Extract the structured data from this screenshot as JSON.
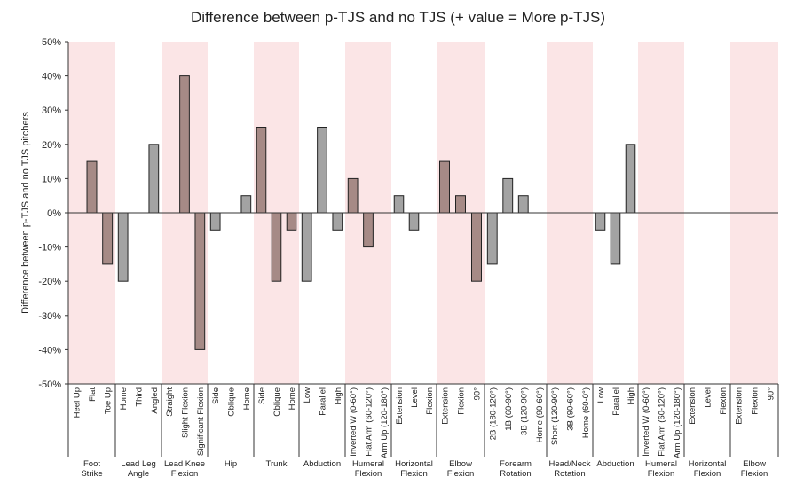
{
  "chart_data": {
    "type": "bar",
    "title": "Difference between p-TJS and no TJS (+ value = More p-TJS)",
    "xlabel": "",
    "ylabel": "Difference between p-TJS and no TJS pitchers",
    "ylim": [
      -50,
      50
    ],
    "yticks": [
      "50%",
      "40%",
      "30%",
      "20%",
      "10%",
      "0%",
      "-10%",
      "-20%",
      "-30%",
      "-40%",
      "-50%"
    ],
    "grid": false,
    "colors": {
      "shaded_band": "#fbe5e6",
      "bar_shaded_group": "#a68a86",
      "bar_plain_group": "#a3a3a3",
      "bar_edge": "#222222",
      "axis": "#333333"
    },
    "groups": [
      {
        "label": "Foot Strike",
        "shaded": true,
        "categories": [
          "Heel Up",
          "Flat",
          "Toe Up"
        ],
        "values": [
          null,
          15,
          -15
        ]
      },
      {
        "label": "Lead Leg Angle",
        "shaded": false,
        "categories": [
          "Home",
          "Third",
          "Angled"
        ],
        "values": [
          -20,
          null,
          20
        ]
      },
      {
        "label": "Lead Knee Flexion",
        "shaded": true,
        "categories": [
          "Straight",
          "Slight Flexion",
          "Significant Flexion"
        ],
        "values": [
          null,
          40,
          -40
        ]
      },
      {
        "label": "Hip",
        "shaded": false,
        "categories": [
          "Side",
          "Oblique",
          "Home"
        ],
        "values": [
          -5,
          null,
          5
        ]
      },
      {
        "label": "Trunk",
        "shaded": true,
        "categories": [
          "Side",
          "Oblique",
          "Home"
        ],
        "values": [
          25,
          -20,
          -5
        ]
      },
      {
        "label": "Abduction",
        "shaded": false,
        "categories": [
          "Low",
          "Parallel",
          "High"
        ],
        "values": [
          -20,
          25,
          -5
        ]
      },
      {
        "label": "Humeral Flexion",
        "shaded": true,
        "categories": [
          "Inverted W (0-60°)",
          "Flat Arm (60-120°)",
          "Arm Up (120-180°)"
        ],
        "values": [
          10,
          -10,
          null
        ]
      },
      {
        "label": "Horizontal Flexion",
        "shaded": false,
        "categories": [
          "Extension",
          "Level",
          "Flexion"
        ],
        "values": [
          5,
          -5,
          null
        ]
      },
      {
        "label": "Elbow Flexion",
        "shaded": true,
        "categories": [
          "Extension",
          "Flexion",
          "90°"
        ],
        "values": [
          15,
          5,
          -20
        ]
      },
      {
        "label": "Forearm Rotation",
        "shaded": false,
        "categories": [
          "2B (180-120°)",
          "1B (60-90°)",
          "3B (120-90°)",
          "Home (90-60°)"
        ],
        "values": [
          -15,
          10,
          5,
          null
        ]
      },
      {
        "label": "Head/Neck Rotation",
        "shaded": true,
        "categories": [
          "Short (120-90°)",
          "3B (90-60°)",
          "Home (60-0°)"
        ],
        "values": [
          null,
          null,
          null
        ]
      },
      {
        "label": "Abduction",
        "shaded": false,
        "categories": [
          "Low",
          "Parallel",
          "High"
        ],
        "values": [
          -5,
          -15,
          20
        ]
      },
      {
        "label": "Humeral Flexion",
        "shaded": true,
        "categories": [
          "Inverted W (0-60°)",
          "Flat Arm (60-120°)",
          "Arm Up (120-180°)"
        ],
        "values": [
          null,
          null,
          null
        ]
      },
      {
        "label": "Horizontal Flexion",
        "shaded": false,
        "categories": [
          "Extension",
          "Level",
          "Flexion"
        ],
        "values": [
          null,
          null,
          null
        ]
      },
      {
        "label": "Elbow Flexion",
        "shaded": true,
        "categories": [
          "Extension",
          "Flexion",
          "90°"
        ],
        "values": [
          null,
          null,
          null
        ]
      }
    ]
  }
}
